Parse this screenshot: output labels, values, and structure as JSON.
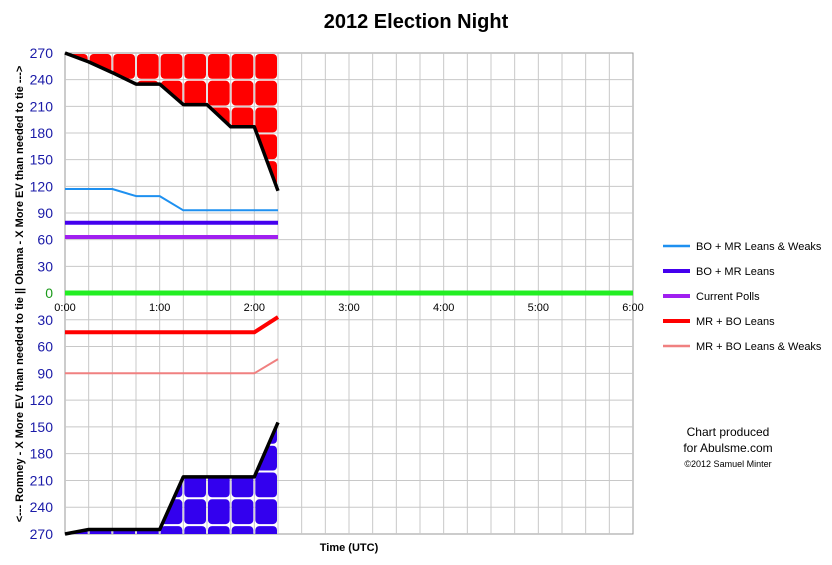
{
  "chart_data": {
    "type": "line",
    "title": "2012 Election Night",
    "xlabel": "Time (UTC)",
    "ylabel": "<--- Romney - X More EV than needed to tie ||  Obama - X More EV than needed to tie --->",
    "x_ticks": [
      "0:00",
      "1:00",
      "2:00",
      "3:00",
      "4:00",
      "5:00",
      "6:00"
    ],
    "y_ticks_upper": [
      "270",
      "240",
      "210",
      "180",
      "150",
      "120",
      "90",
      "60",
      "30",
      "0"
    ],
    "y_ticks_lower": [
      "30",
      "60",
      "90",
      "120",
      "150",
      "180",
      "210",
      "240",
      "270"
    ],
    "xlim_hours": [
      0,
      6
    ],
    "ylim": [
      -270,
      270
    ],
    "grid": true,
    "legend_position": "right",
    "upper_envelope": {
      "color": "#000000",
      "x": [
        0,
        0.25,
        0.5,
        0.75,
        1.0,
        1.25,
        1.5,
        1.75,
        2.0,
        2.25
      ],
      "y": [
        270,
        260,
        248,
        235,
        235,
        212,
        212,
        187,
        187,
        115
      ]
    },
    "lower_envelope": {
      "color": "#000000",
      "x": [
        0,
        0.25,
        0.5,
        0.75,
        1.0,
        1.25,
        1.5,
        1.75,
        2.0,
        2.25
      ],
      "y": [
        -270,
        -265,
        -265,
        -265,
        -265,
        -206,
        -206,
        -206,
        -206,
        -145
      ]
    },
    "series": [
      {
        "name": "BO + MR Leans & Weaks",
        "color": "#1e90f0",
        "x": [
          0,
          0.5,
          0.75,
          1.0,
          1.25,
          1.5,
          1.75,
          2.0,
          2.25
        ],
        "y": [
          117,
          117,
          109,
          109,
          93,
          93,
          93,
          93,
          93
        ]
      },
      {
        "name": "BO + MR Leans",
        "color": "#4400ee",
        "x": [
          0,
          2.25
        ],
        "y": [
          79,
          79
        ]
      },
      {
        "name": "Current Polls",
        "color": "#a020f0",
        "x": [
          0,
          2.25
        ],
        "y": [
          63,
          63
        ]
      },
      {
        "name": "MR + BO Leans",
        "color": "#ff0000",
        "x": [
          0,
          2.0,
          2.25
        ],
        "y": [
          -44,
          -44,
          -27
        ]
      },
      {
        "name": "MR + BO Leans & Weaks",
        "color": "#f08080",
        "x": [
          0,
          2.0,
          2.25
        ],
        "y": [
          -90,
          -90,
          -74
        ]
      }
    ],
    "zero_line_color": "#22ee22",
    "upper_fill_color": "#ff0000",
    "lower_fill_color": "#3300ee"
  },
  "credit": {
    "line1": "Chart produced",
    "line2": "for Abulsme.com",
    "line3": "©2012 Samuel Minter"
  }
}
